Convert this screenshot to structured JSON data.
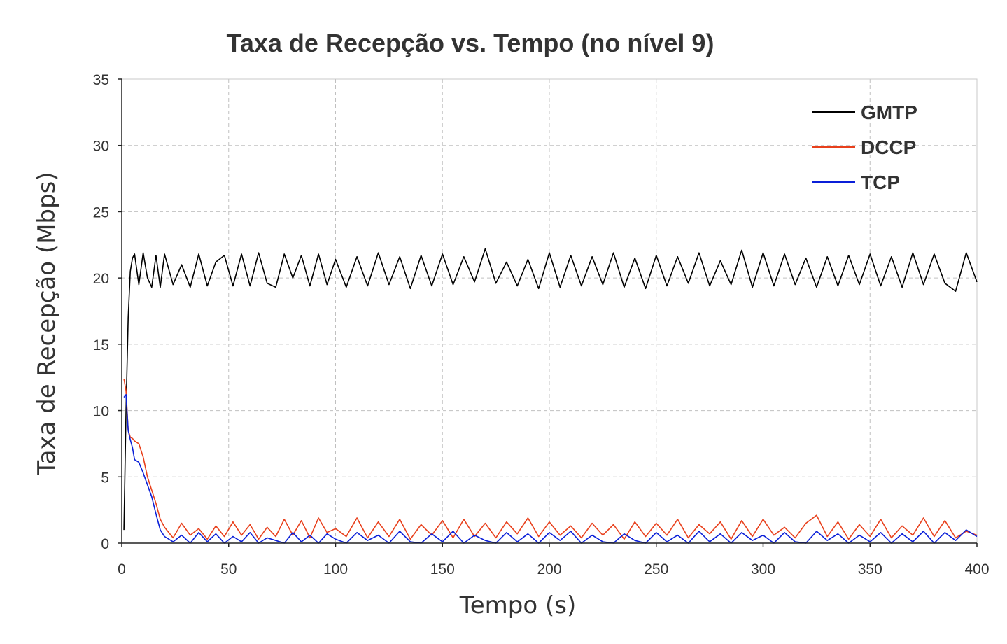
{
  "chart_data": {
    "type": "line",
    "title": "Taxa de Recepção vs. Tempo (no nível 9)",
    "xlabel": "Tempo (s)",
    "ylabel": "Taxa de Recepção (Mbps)",
    "xlim": [
      0,
      400
    ],
    "ylim": [
      0,
      35
    ],
    "xticks": [
      0,
      50,
      100,
      150,
      200,
      250,
      300,
      350,
      400
    ],
    "yticks": [
      0,
      5,
      10,
      15,
      20,
      25,
      30,
      35
    ],
    "grid": true,
    "legend_position": "top-right",
    "series": [
      {
        "name": "GMTP",
        "color": "#000000",
        "x": [
          1,
          2,
          3,
          4,
          5,
          6,
          8,
          10,
          12,
          14,
          16,
          18,
          20,
          24,
          28,
          32,
          36,
          40,
          44,
          48,
          52,
          56,
          60,
          64,
          68,
          72,
          76,
          80,
          84,
          88,
          92,
          96,
          100,
          105,
          110,
          115,
          120,
          125,
          130,
          135,
          140,
          145,
          150,
          155,
          160,
          165,
          170,
          175,
          180,
          185,
          190,
          195,
          200,
          205,
          210,
          215,
          220,
          225,
          230,
          235,
          240,
          245,
          250,
          255,
          260,
          265,
          270,
          275,
          280,
          285,
          290,
          295,
          300,
          305,
          310,
          315,
          320,
          325,
          330,
          335,
          340,
          345,
          350,
          355,
          360,
          365,
          370,
          375,
          380,
          385,
          390,
          395,
          400
        ],
        "values": [
          1,
          10,
          17,
          20.5,
          21.5,
          21.8,
          19.5,
          21.9,
          20.0,
          19.3,
          21.7,
          19.3,
          21.8,
          19.5,
          21.0,
          19.3,
          21.8,
          19.4,
          21.2,
          21.7,
          19.4,
          21.8,
          19.4,
          21.9,
          19.6,
          19.3,
          21.8,
          20.0,
          21.7,
          19.4,
          21.8,
          19.5,
          21.4,
          19.3,
          21.6,
          19.4,
          21.9,
          19.5,
          21.6,
          19.2,
          21.7,
          19.4,
          21.8,
          19.5,
          21.6,
          19.7,
          22.2,
          19.6,
          21.2,
          19.4,
          21.4,
          19.2,
          21.9,
          19.3,
          21.7,
          19.4,
          21.6,
          19.5,
          21.9,
          19.3,
          21.5,
          19.2,
          21.7,
          19.4,
          21.6,
          19.6,
          21.9,
          19.4,
          21.3,
          19.5,
          22.1,
          19.3,
          21.9,
          19.4,
          21.8,
          19.5,
          21.5,
          19.3,
          21.6,
          19.4,
          21.7,
          19.5,
          21.8,
          19.4,
          21.6,
          19.3,
          21.9,
          19.5,
          21.8,
          19.6,
          19.0,
          21.9,
          19.7
        ]
      },
      {
        "name": "DCCP",
        "color": "#e8401c",
        "x": [
          1,
          2,
          3,
          4,
          5,
          6,
          8,
          10,
          12,
          14,
          16,
          18,
          20,
          24,
          28,
          32,
          36,
          40,
          44,
          48,
          52,
          56,
          60,
          64,
          68,
          72,
          76,
          80,
          84,
          88,
          92,
          96,
          100,
          105,
          110,
          115,
          120,
          125,
          130,
          135,
          140,
          145,
          150,
          155,
          160,
          165,
          170,
          175,
          180,
          185,
          190,
          195,
          200,
          205,
          210,
          215,
          220,
          225,
          230,
          235,
          240,
          245,
          250,
          255,
          260,
          265,
          270,
          275,
          280,
          285,
          290,
          295,
          300,
          305,
          310,
          315,
          320,
          325,
          330,
          335,
          340,
          345,
          350,
          355,
          360,
          365,
          370,
          375,
          380,
          385,
          390,
          395,
          400
        ],
        "values": [
          12.4,
          11.5,
          8.5,
          8.0,
          7.9,
          7.7,
          7.5,
          6.5,
          5.0,
          4.0,
          3.0,
          1.8,
          1.2,
          0.4,
          1.5,
          0.6,
          1.1,
          0.3,
          1.3,
          0.5,
          1.6,
          0.6,
          1.4,
          0.3,
          1.2,
          0.5,
          1.8,
          0.6,
          1.7,
          0.4,
          1.9,
          0.8,
          1.1,
          0.5,
          1.9,
          0.4,
          1.6,
          0.5,
          1.8,
          0.3,
          1.4,
          0.6,
          1.7,
          0.4,
          1.8,
          0.5,
          1.5,
          0.4,
          1.6,
          0.7,
          1.9,
          0.5,
          1.6,
          0.6,
          1.3,
          0.4,
          1.5,
          0.6,
          1.4,
          0.3,
          1.6,
          0.5,
          1.5,
          0.6,
          1.8,
          0.4,
          1.4,
          0.7,
          1.6,
          0.3,
          1.7,
          0.5,
          1.8,
          0.6,
          1.2,
          0.4,
          1.5,
          2.1,
          0.5,
          1.6,
          0.3,
          1.4,
          0.5,
          1.8,
          0.4,
          1.3,
          0.6,
          1.9,
          0.5,
          1.7,
          0.4,
          0.9,
          0.6
        ]
      },
      {
        "name": "TCP",
        "color": "#0a1fd8",
        "x": [
          1,
          2,
          3,
          4,
          5,
          6,
          8,
          10,
          12,
          14,
          16,
          18,
          20,
          24,
          28,
          32,
          36,
          40,
          44,
          48,
          52,
          56,
          60,
          64,
          68,
          72,
          76,
          80,
          84,
          88,
          92,
          96,
          100,
          105,
          110,
          115,
          120,
          125,
          130,
          135,
          140,
          145,
          150,
          155,
          160,
          165,
          170,
          175,
          180,
          185,
          190,
          195,
          200,
          205,
          210,
          215,
          220,
          225,
          230,
          235,
          240,
          245,
          250,
          255,
          260,
          265,
          270,
          275,
          280,
          285,
          290,
          295,
          300,
          305,
          310,
          315,
          320,
          325,
          330,
          335,
          340,
          345,
          350,
          355,
          360,
          365,
          370,
          375,
          380,
          385,
          390,
          395,
          400
        ],
        "values": [
          11.0,
          11.2,
          8.5,
          7.8,
          7.2,
          6.3,
          6.1,
          5.3,
          4.4,
          3.5,
          2.2,
          1.0,
          0.5,
          0.1,
          0.6,
          0.0,
          0.8,
          0.1,
          0.7,
          0.0,
          0.5,
          0.1,
          0.8,
          0.0,
          0.4,
          0.2,
          0.0,
          0.8,
          0.1,
          0.6,
          0.0,
          0.7,
          0.3,
          0.0,
          0.8,
          0.2,
          0.6,
          0.0,
          0.9,
          0.1,
          0.0,
          0.7,
          0.1,
          0.9,
          0.0,
          0.6,
          0.2,
          0.0,
          0.8,
          0.1,
          0.7,
          0.0,
          0.8,
          0.2,
          0.9,
          0.0,
          0.6,
          0.1,
          0.0,
          0.7,
          0.2,
          0.0,
          0.8,
          0.1,
          0.6,
          0.0,
          0.9,
          0.1,
          0.7,
          0.0,
          0.8,
          0.2,
          0.6,
          0.0,
          0.8,
          0.1,
          0.0,
          0.9,
          0.2,
          0.7,
          0.0,
          0.6,
          0.1,
          0.8,
          0.0,
          0.7,
          0.1,
          0.9,
          0.0,
          0.8,
          0.2,
          1.0,
          0.5
        ]
      }
    ]
  }
}
